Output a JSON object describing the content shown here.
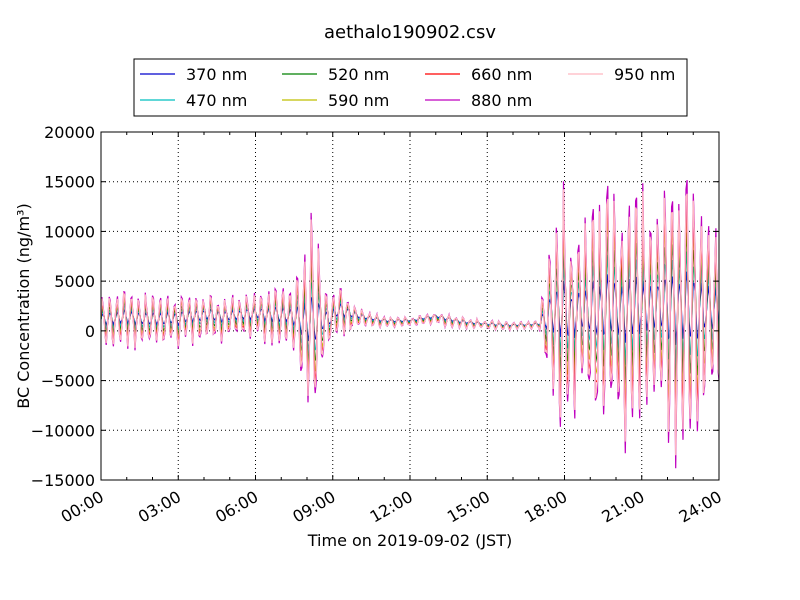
{
  "chart_data": {
    "type": "line",
    "title": "aethalo190902.csv",
    "xlabel": "Time on 2019-09-02 (JST)",
    "ylabel": "BC Concentration (ng/m³)",
    "xlim": [
      "00:00",
      "24:00"
    ],
    "ylim": [
      -15000,
      20000
    ],
    "xticks": [
      "00:00",
      "03:00",
      "06:00",
      "09:00",
      "12:00",
      "15:00",
      "18:00",
      "21:00",
      "24:00"
    ],
    "yticks": [
      "−15000",
      "−10000",
      "−5000",
      "0",
      "5000",
      "10000",
      "15000",
      "20000"
    ],
    "grid": true,
    "legend_position": "top-center",
    "series": [
      {
        "name": "370 nm",
        "color": "#0000cc",
        "amp": 0.25,
        "offset": 1.15
      },
      {
        "name": "470 nm",
        "color": "#00bfbf",
        "amp": 0.4,
        "offset": 1.12
      },
      {
        "name": "520 nm",
        "color": "#008000",
        "amp": 0.55,
        "offset": 1.08
      },
      {
        "name": "590 nm",
        "color": "#bfbf00",
        "amp": 0.7,
        "offset": 1.05
      },
      {
        "name": "660 nm",
        "color": "#ff0000",
        "amp": 0.82,
        "offset": 1.02
      },
      {
        "name": "880 nm",
        "color": "#bf00bf",
        "amp": 1.0,
        "offset": 1.0
      },
      {
        "name": "950 nm",
        "color": "#ffb6c1",
        "amp": 0.92,
        "offset": 1.0
      }
    ],
    "base_profile": {
      "hours": [
        0,
        1,
        2,
        3,
        4,
        5,
        6,
        7,
        7.5,
        8,
        8.3,
        8.6,
        8.9,
        9.2,
        9.6,
        10,
        11,
        12,
        13,
        14,
        15,
        16,
        17,
        17.5,
        17.9,
        18.2,
        19,
        20,
        21,
        22,
        23,
        24
      ],
      "mean": [
        1000,
        1200,
        1000,
        1100,
        1400,
        1300,
        1500,
        1400,
        1200,
        800,
        900,
        1000,
        1000,
        1800,
        1600,
        1300,
        900,
        900,
        1300,
        800,
        600,
        500,
        600,
        1500,
        2000,
        1500,
        1800,
        2000,
        2000,
        2200,
        2000,
        1800
      ],
      "swing": [
        2500,
        2200,
        2300,
        2100,
        2000,
        2100,
        2000,
        2300,
        2600,
        7500,
        10000,
        4000,
        2500,
        3000,
        2000,
        800,
        500,
        400,
        600,
        500,
        400,
        400,
        300,
        8000,
        11000,
        9000,
        10000,
        10500,
        10000,
        12500,
        11000,
        7000
      ]
    },
    "oscillation_period_hours": 0.28
  }
}
